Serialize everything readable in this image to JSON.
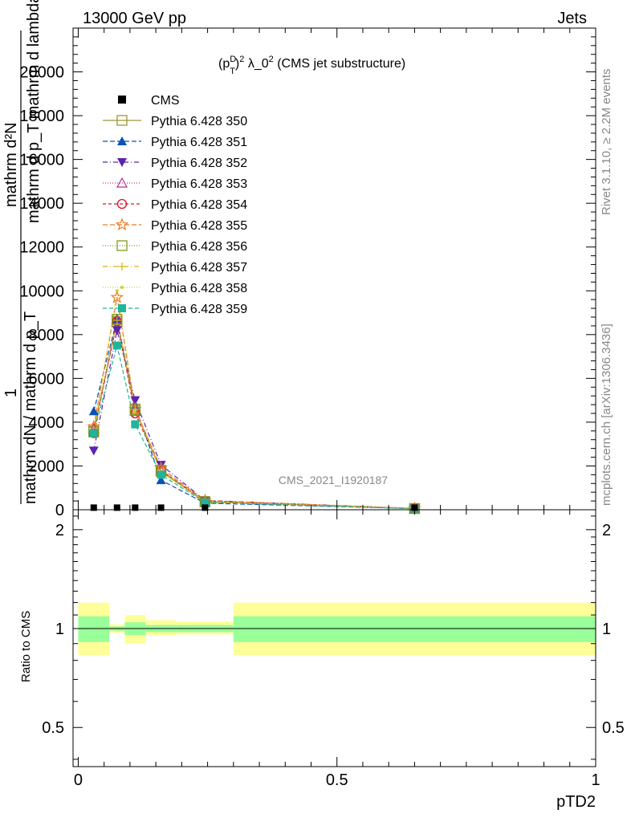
{
  "header": {
    "left": "13000 GeV pp",
    "right": "Jets"
  },
  "side_labels": {
    "rivet": "Rivet 3.1.10, ≥ 2.2M events",
    "mcplots": "mcplots.cern.ch [arXiv:1306.3436]"
  },
  "chart_data": [
    {
      "type": "line",
      "title": "(p_T^D)^2 λ_0^2 (CMS jet substructure)",
      "title_parts": {
        "a": "(p",
        "sup1": "D",
        "sub1": "T",
        "b": ")",
        "sup2": "2",
        "c": " λ_0",
        "sup3": "2",
        "d": " (CMS jet substructure)"
      },
      "ylabel_lines": [
        "mathrm d²N",
        "mathrm d p_T mathrm d lambda",
        "1",
        "mathrm dN / mathrm d p_T"
      ],
      "watermark": "CMS_2021_I1920187",
      "ylim": [
        0,
        22000
      ],
      "yticks": [
        0,
        2000,
        4000,
        6000,
        8000,
        10000,
        12000,
        14000,
        16000,
        18000,
        20000
      ],
      "ytick_labels": [
        "0",
        "2000",
        "4000",
        "6000",
        "8000",
        "10000",
        "12000",
        "14000",
        "16000",
        "18000",
        "20000"
      ],
      "xlim": [
        -0.01,
        1.0
      ],
      "x": [
        0.03,
        0.075,
        0.11,
        0.16,
        0.245,
        0.65
      ],
      "data": {
        "name": "CMS",
        "values": [
          22,
          22,
          22,
          22,
          22,
          22
        ]
      },
      "series": [
        {
          "name": "Pythia 6.428 350",
          "color": "#999933",
          "marker": "square-open",
          "dash": "",
          "values": [
            3600,
            8600,
            4600,
            1750,
            360,
            55
          ]
        },
        {
          "name": "Pythia 6.428 351",
          "color": "#0b52b8",
          "marker": "triangle-up",
          "dash": "6,3",
          "values": [
            4500,
            8700,
            4750,
            1350,
            300,
            50
          ]
        },
        {
          "name": "Pythia 6.428 352",
          "color": "#5b23b2",
          "marker": "triangle-down",
          "dash": "6,3,1,3",
          "values": [
            2700,
            8200,
            5000,
            2050,
            430,
            60
          ]
        },
        {
          "name": "Pythia 6.428 353",
          "color": "#b8338a",
          "marker": "triangle-open",
          "dash": "1,2",
          "values": [
            3700,
            8700,
            4500,
            1800,
            380,
            55
          ]
        },
        {
          "name": "Pythia 6.428 354",
          "color": "#e0102a",
          "marker": "circle-open",
          "dash": "4,3",
          "values": [
            3500,
            8600,
            4400,
            1800,
            400,
            55
          ]
        },
        {
          "name": "Pythia 6.428 355",
          "color": "#ee7a22",
          "marker": "star-open",
          "dash": "6,3",
          "values": [
            3800,
            9700,
            4600,
            1900,
            420,
            60
          ]
        },
        {
          "name": "Pythia 6.428 356",
          "color": "#7f9a1c",
          "marker": "square-open",
          "dash": "1,2",
          "values": [
            3550,
            8700,
            4550,
            1800,
            370,
            55
          ]
        },
        {
          "name": "Pythia 6.428 357",
          "color": "#d9b21b",
          "marker": "cross-dot",
          "dash": "6,3,1,3",
          "values": [
            3650,
            8650,
            4600,
            1780,
            370,
            55
          ]
        },
        {
          "name": "Pythia 6.428 358",
          "color": "#c8d42a",
          "marker": "dot",
          "dash": "1,2",
          "values": [
            3600,
            10000,
            4550,
            1700,
            360,
            55
          ]
        },
        {
          "name": "Pythia 6.428 359",
          "color": "#1fb59a",
          "marker": "square-filled",
          "dash": "5,3",
          "values": [
            3500,
            7500,
            3900,
            1600,
            330,
            50
          ]
        }
      ]
    },
    {
      "type": "area",
      "ylabel": "Ratio to CMS",
      "xlabel": "pTD2",
      "xlim": [
        -0.01,
        1.0
      ],
      "ylim": [
        0.38,
        2.3
      ],
      "yscale": "log",
      "yticks": [
        0.5,
        1,
        2
      ],
      "ytick_labels": [
        "0.5",
        "1",
        "2"
      ],
      "xticks": [
        0,
        0.5,
        1
      ],
      "xtick_labels": [
        "0",
        "0.5",
        "1"
      ],
      "bins": [
        {
          "x0": 0.0,
          "x1": 0.06,
          "inner": [
            0.91,
            1.09
          ],
          "outer": [
            0.83,
            1.2
          ]
        },
        {
          "x0": 0.06,
          "x1": 0.09,
          "inner": [
            0.985,
            1.015
          ],
          "outer": [
            0.97,
            1.03
          ]
        },
        {
          "x0": 0.09,
          "x1": 0.13,
          "inner": [
            0.955,
            1.045
          ],
          "outer": [
            0.9,
            1.1
          ]
        },
        {
          "x0": 0.13,
          "x1": 0.19,
          "inner": [
            0.975,
            1.025
          ],
          "outer": [
            0.955,
            1.06
          ]
        },
        {
          "x0": 0.19,
          "x1": 0.3,
          "inner": [
            0.975,
            1.025
          ],
          "outer": [
            0.96,
            1.05
          ]
        },
        {
          "x0": 0.3,
          "x1": 1.0,
          "inner": [
            0.91,
            1.09
          ],
          "outer": [
            0.83,
            1.2
          ]
        }
      ],
      "colors": {
        "inner": "#99ff99",
        "outer": "#ffff99"
      }
    }
  ]
}
